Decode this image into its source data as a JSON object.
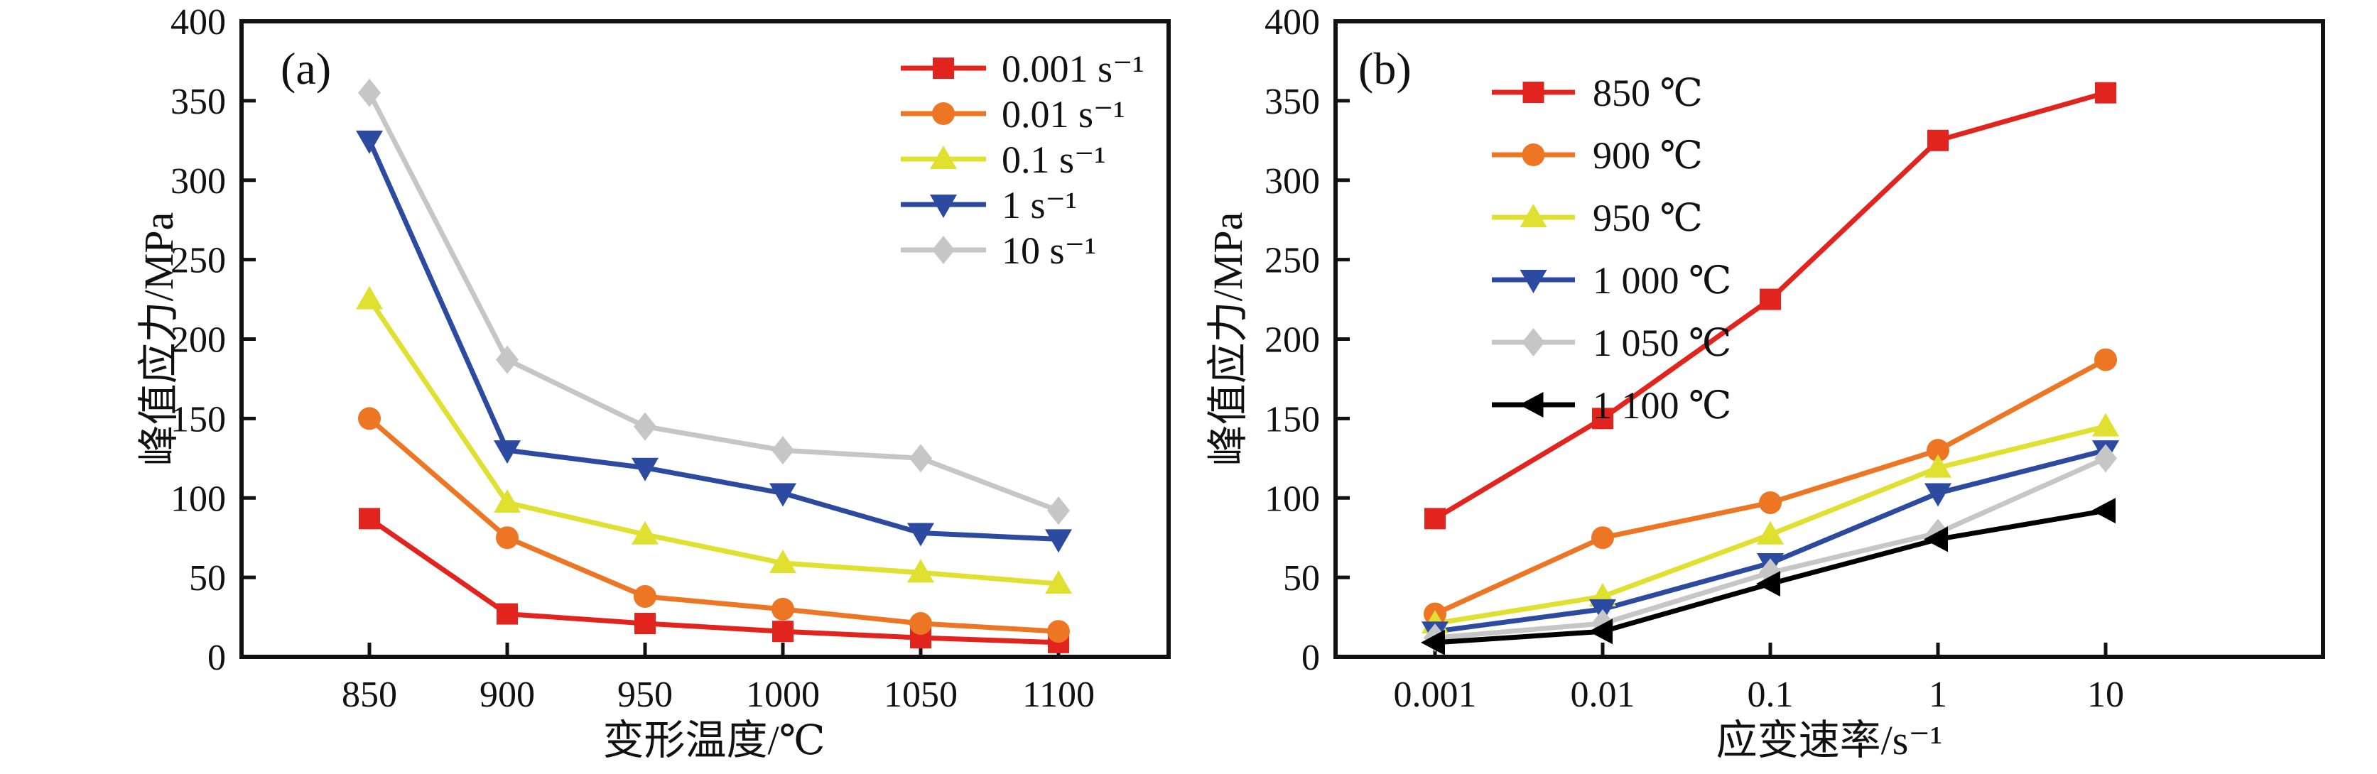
{
  "figure": {
    "description": "Peak stress of alloy under hot deformation",
    "background": "#ffffff",
    "axis_color": "#111111"
  },
  "chart_data": [
    {
      "id": "a",
      "type": "line",
      "panel_label": "(a)",
      "xlabel": "变形温度/℃",
      "ylabel": "峰值应力/MPa",
      "x_scale": "linear",
      "x": [
        850,
        900,
        950,
        1000,
        1050,
        1100
      ],
      "x_tick_labels": [
        "850",
        "900",
        "950",
        "1000",
        "1050",
        "1100"
      ],
      "ylim": [
        0,
        400
      ],
      "y_ticks": [
        0,
        50,
        100,
        150,
        200,
        250,
        300,
        350,
        400
      ],
      "y_tick_labels": [
        "0",
        "50",
        "100",
        "150",
        "200",
        "250",
        "300",
        "350",
        "400"
      ],
      "grid": "off",
      "legend_position": "top-right-inside",
      "series": [
        {
          "name": "0.001 s⁻¹",
          "marker": "square",
          "color": "#e2241f",
          "values": [
            87,
            27,
            21,
            16,
            12,
            9
          ]
        },
        {
          "name": "0.01 s⁻¹",
          "marker": "circle",
          "color": "#ec7623",
          "values": [
            150,
            75,
            38,
            30,
            21,
            16
          ]
        },
        {
          "name": "0.1 s⁻¹",
          "marker": "triangle-up",
          "color": "#dfe030",
          "values": [
            225,
            97,
            77,
            59,
            53,
            46
          ]
        },
        {
          "name": "1 s⁻¹",
          "marker": "triangle-down",
          "color": "#2b4aa0",
          "values": [
            325,
            130,
            119,
            103,
            78,
            74
          ]
        },
        {
          "name": "10 s⁻¹",
          "marker": "diamond",
          "color": "#c6c6c6",
          "values": [
            355,
            187,
            145,
            130,
            125,
            92
          ]
        }
      ]
    },
    {
      "id": "b",
      "type": "line",
      "panel_label": "(b)",
      "xlabel": "应变速率/s⁻¹",
      "ylabel": "峰值应力/MPa",
      "x_scale": "log",
      "x": [
        0.001,
        0.01,
        0.1,
        1,
        10
      ],
      "x_tick_labels": [
        "0.001",
        "0.01",
        "0.1",
        "1",
        "10"
      ],
      "ylim": [
        0,
        400
      ],
      "y_ticks": [
        0,
        50,
        100,
        150,
        200,
        250,
        300,
        350,
        400
      ],
      "y_tick_labels": [
        "0",
        "50",
        "100",
        "150",
        "200",
        "250",
        "300",
        "350",
        "400"
      ],
      "grid": "off",
      "legend_position": "top-left-inside",
      "series": [
        {
          "name": "850 ℃",
          "marker": "square",
          "color": "#e2241f",
          "values": [
            87,
            150,
            225,
            325,
            355
          ]
        },
        {
          "name": "900 ℃",
          "marker": "circle",
          "color": "#ec7623",
          "values": [
            27,
            75,
            97,
            130,
            187
          ]
        },
        {
          "name": "950 ℃",
          "marker": "triangle-up",
          "color": "#dfe030",
          "values": [
            21,
            38,
            77,
            119,
            145
          ]
        },
        {
          "name": "1 000 ℃",
          "marker": "triangle-down",
          "color": "#2b4aa0",
          "values": [
            16,
            30,
            59,
            103,
            130
          ]
        },
        {
          "name": "1 050 ℃",
          "marker": "diamond",
          "color": "#c6c6c6",
          "values": [
            12,
            21,
            53,
            78,
            125
          ]
        },
        {
          "name": "1 100 ℃",
          "marker": "triangle-left",
          "color": "#000000",
          "values": [
            9,
            16,
            46,
            74,
            92
          ]
        }
      ]
    }
  ]
}
